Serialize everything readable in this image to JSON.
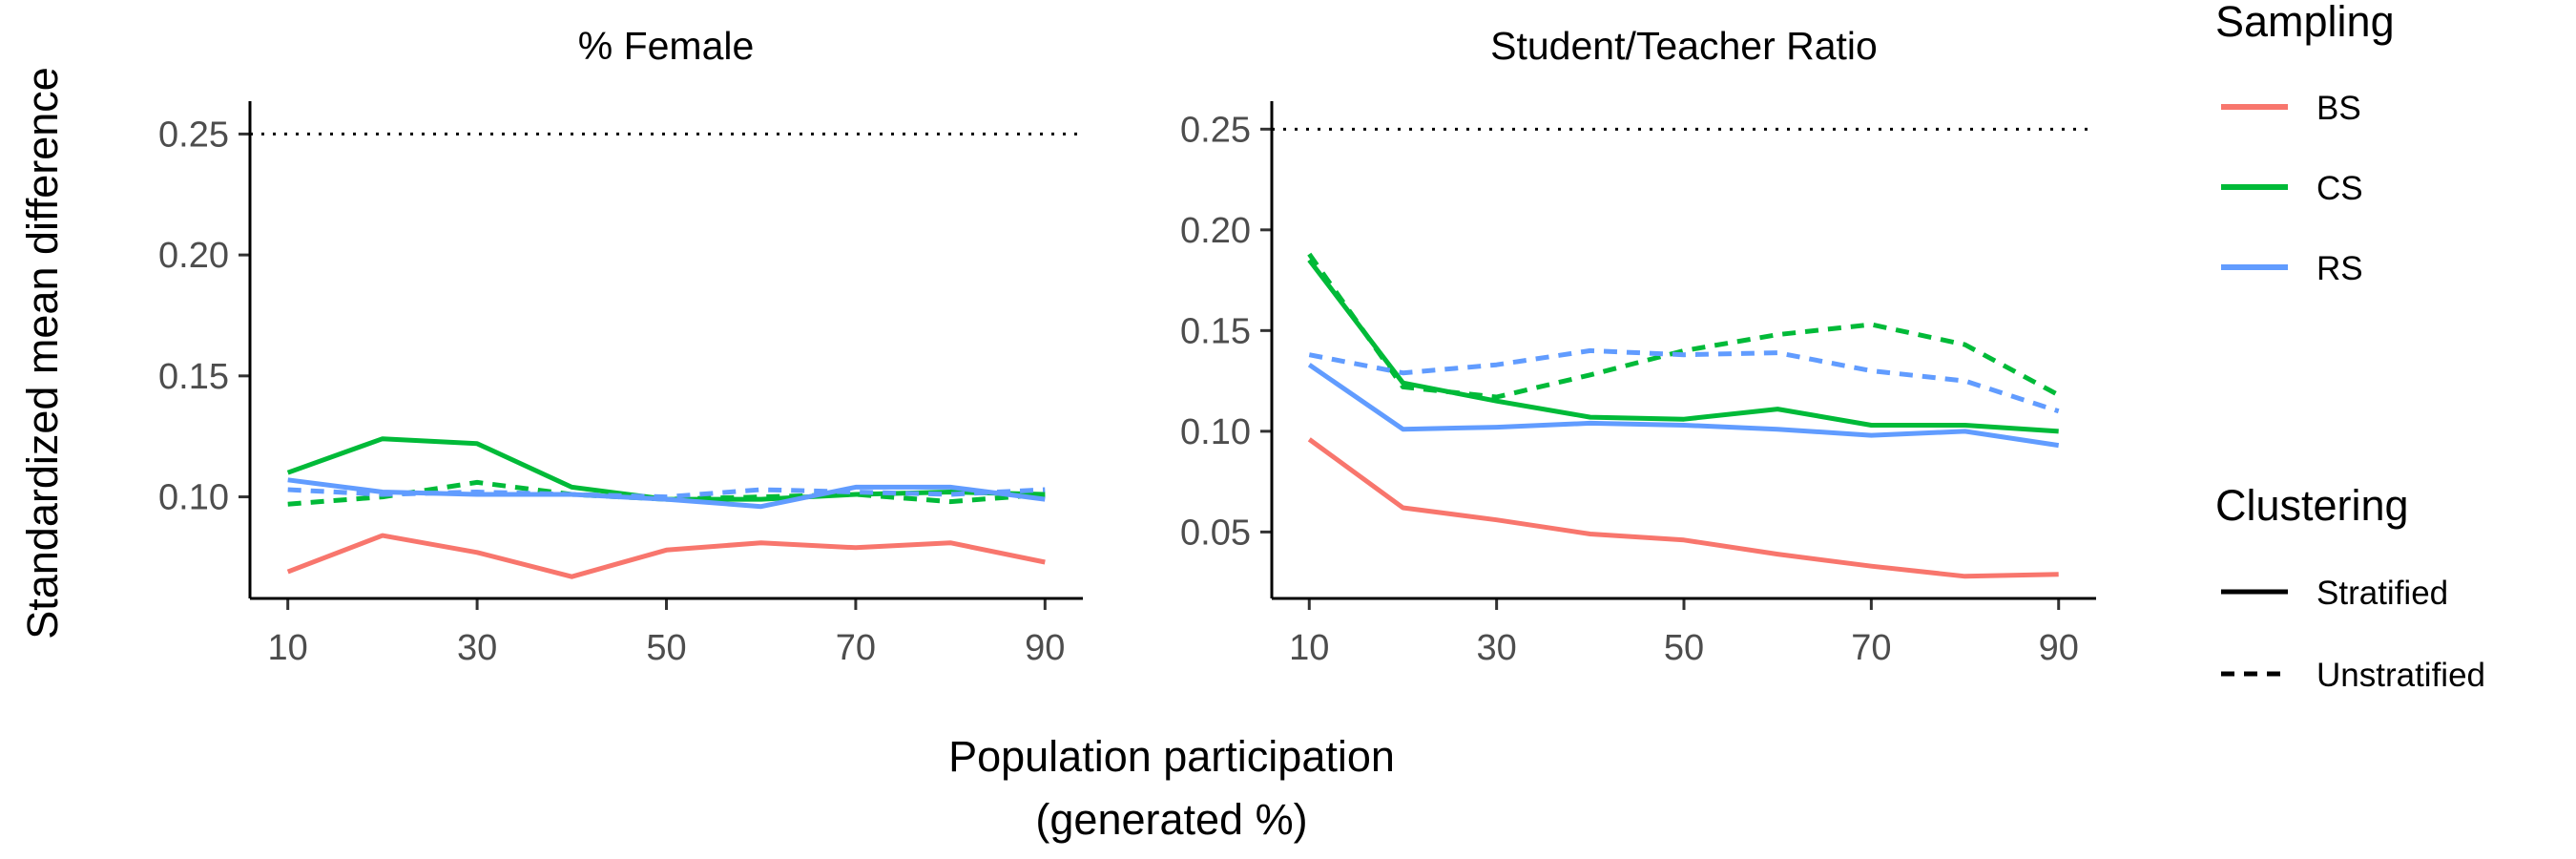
{
  "chart_data": [
    {
      "type": "line",
      "title": "% Female",
      "x": [
        10,
        20,
        30,
        40,
        50,
        60,
        70,
        80,
        90
      ],
      "xticks": [
        10,
        30,
        50,
        70,
        90
      ],
      "xlim": [
        6,
        94
      ],
      "yticks": [
        0.1,
        0.15,
        0.2,
        0.25
      ],
      "ylim": [
        0.058,
        0.262
      ],
      "reference_line": 0.25,
      "series": [
        {
          "sampling": "BS",
          "clustering": "Stratified",
          "color": "#F8766D",
          "values": [
            0.069,
            0.084,
            0.077,
            0.067,
            0.078,
            0.081,
            0.079,
            0.081,
            0.073
          ]
        },
        {
          "sampling": "CS",
          "clustering": "Stratified",
          "color": "#00BA38",
          "values": [
            0.11,
            0.124,
            0.122,
            0.104,
            0.099,
            0.099,
            0.101,
            0.102,
            0.101
          ]
        },
        {
          "sampling": "CS",
          "clustering": "Unstratified",
          "color": "#00BA38",
          "values": [
            0.097,
            0.1,
            0.106,
            0.101,
            0.099,
            0.1,
            0.101,
            0.098,
            0.101
          ]
        },
        {
          "sampling": "RS",
          "clustering": "Stratified",
          "color": "#619CFF",
          "values": [
            0.107,
            0.102,
            0.101,
            0.101,
            0.099,
            0.096,
            0.104,
            0.104,
            0.099
          ]
        },
        {
          "sampling": "RS",
          "clustering": "Unstratified",
          "color": "#619CFF",
          "values": [
            0.103,
            0.101,
            0.102,
            0.101,
            0.1,
            0.103,
            0.102,
            0.101,
            0.103
          ]
        }
      ]
    },
    {
      "type": "line",
      "title": "Student/Teacher Ratio",
      "x": [
        10,
        20,
        30,
        40,
        50,
        60,
        70,
        80,
        90
      ],
      "xticks": [
        10,
        30,
        50,
        70,
        90
      ],
      "xlim": [
        6,
        94
      ],
      "yticks": [
        0.05,
        0.1,
        0.15,
        0.2,
        0.25
      ],
      "ylim": [
        0.017,
        0.262
      ],
      "reference_line": 0.25,
      "series": [
        {
          "sampling": "BS",
          "clustering": "Stratified",
          "color": "#F8766D",
          "values": [
            0.096,
            0.062,
            0.056,
            0.049,
            0.046,
            0.039,
            0.033,
            0.028,
            0.029
          ]
        },
        {
          "sampling": "CS",
          "clustering": "Stratified",
          "color": "#00BA38",
          "values": [
            0.185,
            0.124,
            0.115,
            0.107,
            0.106,
            0.111,
            0.103,
            0.103,
            0.1
          ]
        },
        {
          "sampling": "CS",
          "clustering": "Unstratified",
          "color": "#00BA38",
          "values": [
            0.188,
            0.122,
            0.117,
            0.128,
            0.14,
            0.148,
            0.153,
            0.143,
            0.118
          ]
        },
        {
          "sampling": "RS",
          "clustering": "Stratified",
          "color": "#619CFF",
          "values": [
            0.133,
            0.101,
            0.102,
            0.104,
            0.103,
            0.101,
            0.098,
            0.1,
            0.093
          ]
        },
        {
          "sampling": "RS",
          "clustering": "Unstratified",
          "color": "#619CFF",
          "values": [
            0.138,
            0.129,
            0.133,
            0.14,
            0.138,
            0.139,
            0.13,
            0.125,
            0.11
          ]
        }
      ]
    }
  ],
  "axes": {
    "ylabel": "Standardized mean difference",
    "xlabel_line1": "Population participation",
    "xlabel_line2": "(generated %)"
  },
  "legend": {
    "sampling_title": "Sampling",
    "sampling": [
      {
        "label": "BS",
        "color": "#F8766D"
      },
      {
        "label": "CS",
        "color": "#00BA38"
      },
      {
        "label": "RS",
        "color": "#619CFF"
      }
    ],
    "clustering_title": "Clustering",
    "clustering": [
      {
        "label": "Stratified",
        "linetype": "solid"
      },
      {
        "label": "Unstratified",
        "linetype": "dashed"
      }
    ]
  }
}
